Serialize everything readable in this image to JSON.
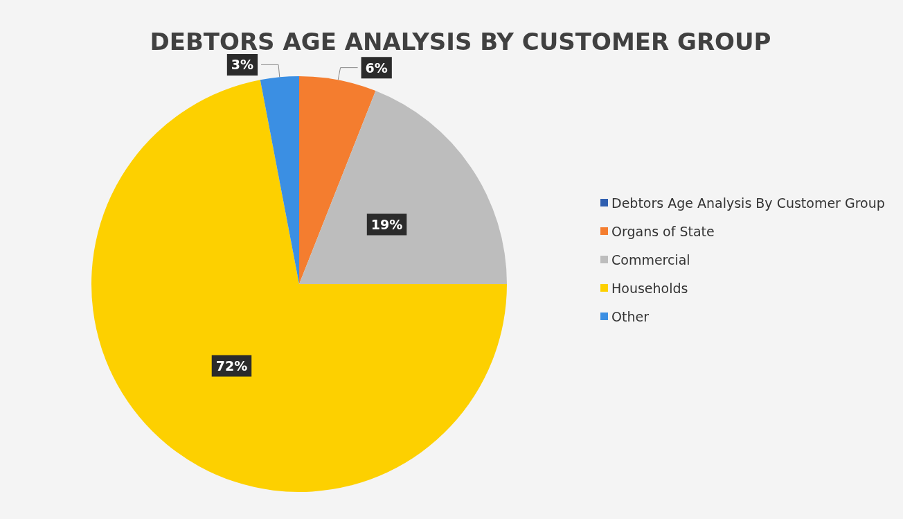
{
  "chart_data": {
    "type": "pie",
    "title": "DEBTORS AGE ANALYSIS BY CUSTOMER GROUP",
    "categories": [
      "Debtors Age Analysis By Customer Group",
      "Organs of State",
      "Commercial",
      "Households",
      "Other"
    ],
    "values": [
      0,
      6,
      19,
      72,
      3
    ],
    "colors": [
      "#2f5fb0",
      "#f47d2f",
      "#bdbdbd",
      "#fdd000",
      "#3b8fe3"
    ],
    "value_labels": [
      null,
      "6%",
      "19%",
      "72%",
      "3%"
    ],
    "legend": "right"
  }
}
